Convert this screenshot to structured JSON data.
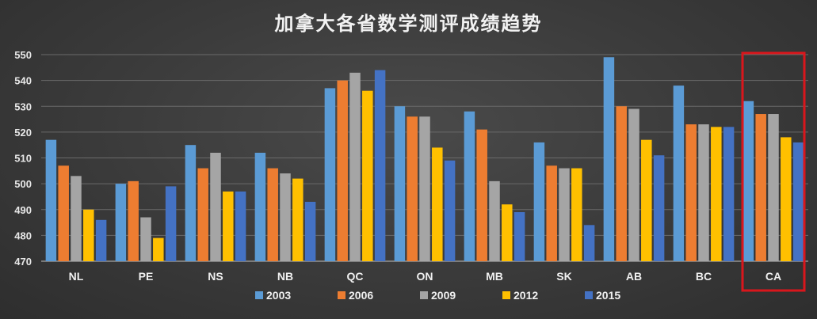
{
  "chart_data": {
    "type": "bar",
    "title": "加拿大各省数学测评成绩趋势",
    "categories": [
      "NL",
      "PE",
      "NS",
      "NB",
      "QC",
      "ON",
      "MB",
      "SK",
      "AB",
      "BC",
      "CA"
    ],
    "series": [
      {
        "name": "2003",
        "color": "#5b9bd5",
        "values": [
          517,
          500,
          515,
          512,
          537,
          530,
          528,
          516,
          549,
          538,
          532
        ]
      },
      {
        "name": "2006",
        "color": "#ed7d31",
        "values": [
          507,
          501,
          506,
          506,
          540,
          526,
          521,
          507,
          530,
          523,
          527
        ]
      },
      {
        "name": "2009",
        "color": "#a5a5a5",
        "values": [
          503,
          487,
          512,
          504,
          543,
          526,
          501,
          506,
          529,
          523,
          527
        ]
      },
      {
        "name": "2012",
        "color": "#ffc000",
        "values": [
          490,
          479,
          497,
          502,
          536,
          514,
          492,
          506,
          517,
          522,
          518
        ]
      },
      {
        "name": "2015",
        "color": "#4472c4",
        "values": [
          486,
          499,
          497,
          493,
          544,
          509,
          489,
          484,
          511,
          522,
          516
        ]
      }
    ],
    "ylim": [
      470,
      550
    ],
    "yticks": [
      470,
      480,
      490,
      500,
      510,
      520,
      530,
      540,
      550
    ],
    "grid": true,
    "legend_position": "bottom",
    "highlight_category": "CA",
    "highlight_color": "#d9161c"
  }
}
